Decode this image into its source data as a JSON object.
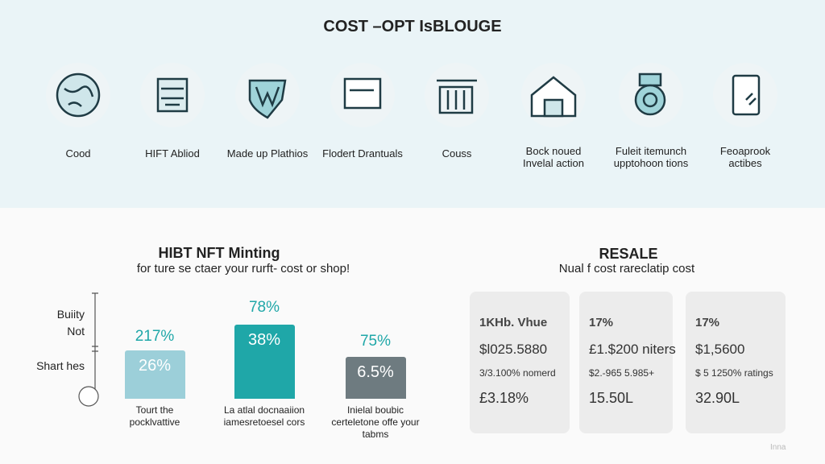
{
  "header": {
    "title": "COST –OPT IsBLOUGE"
  },
  "icons": [
    {
      "lines": [
        "Cood"
      ]
    },
    {
      "lines": [
        "HIFT Abliod"
      ]
    },
    {
      "lines": [
        "Made up Plathios"
      ]
    },
    {
      "lines": [
        "Flodert Drantuals"
      ]
    },
    {
      "lines": [
        "Couss"
      ]
    },
    {
      "lines": [
        "Bock noued",
        "Invelal action"
      ]
    },
    {
      "lines": [
        "Fuleit itemunch",
        "upptohoon tions"
      ]
    },
    {
      "lines": [
        "Feoaprook",
        "actibes"
      ]
    }
  ],
  "minting": {
    "title": "HIBT NFT Minting",
    "subtitle": "for ture se ctaer your rurft- cost or shop!",
    "axis_labels": [
      "Buiity",
      "Not",
      "Shart hes"
    ],
    "bars": [
      {
        "top": "217%",
        "inner": "26%",
        "caption": [
          "Tourt the",
          "pocklvattive"
        ]
      },
      {
        "top": "78%",
        "inner": "38%",
        "caption": [
          "La atlal docnaaiion",
          "iamesretoesel cors"
        ]
      },
      {
        "top": "75%",
        "inner": "6.5%",
        "caption": [
          "Inielal boubic",
          "certeletone offe your",
          "tabms"
        ]
      }
    ]
  },
  "resale": {
    "title": "RESALE",
    "subtitle": "Nual f cost rareclatip cost",
    "cards": [
      {
        "heading": "1KHb. Vhue",
        "lines": [
          "$l025.5880",
          "3/3.100% nomerd",
          "£3.18%"
        ]
      },
      {
        "heading": "17%",
        "lines": [
          "£1.$200 niters",
          "$2.-965 5.985+",
          "15.50L"
        ]
      },
      {
        "heading": "17%",
        "lines": [
          "$1,5600",
          "$ 5 1250% ratings",
          "32.90L"
        ]
      }
    ]
  },
  "footer": {
    "note": "Inna"
  }
}
